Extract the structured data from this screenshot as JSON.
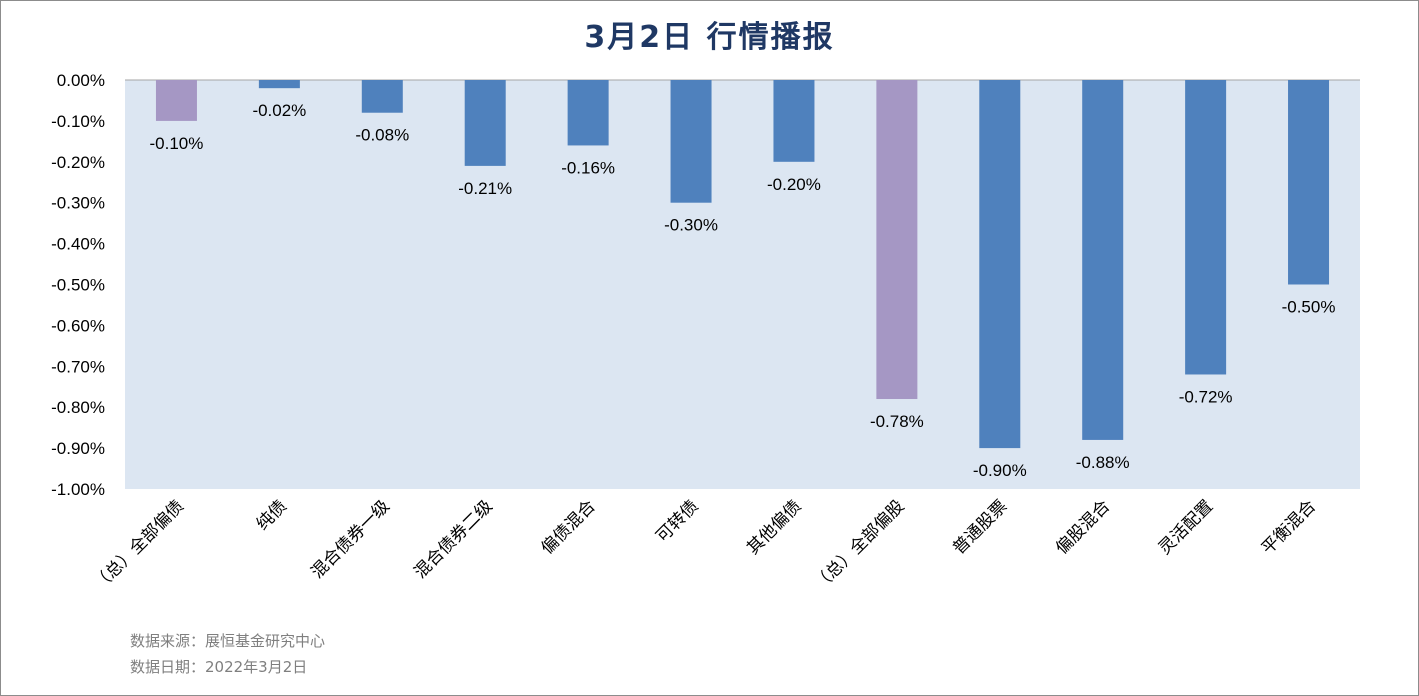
{
  "chart_data": {
    "type": "bar",
    "title": "3月2日  行情播报",
    "categories": [
      "（总）全部偏债",
      "纯债",
      "混合债券一级",
      "混合债券二级",
      "偏债混合",
      "可转债",
      "其他偏债",
      "（总）全部偏股",
      "普通股票",
      "偏股混合",
      "灵活配置",
      "平衡混合"
    ],
    "values": [
      -0.1,
      -0.02,
      -0.08,
      -0.21,
      -0.16,
      -0.3,
      -0.2,
      -0.78,
      -0.9,
      -0.88,
      -0.72,
      -0.5
    ],
    "data_labels": [
      "-0.10%",
      "-0.02%",
      "-0.08%",
      "-0.21%",
      "-0.16%",
      "-0.30%",
      "-0.20%",
      "-0.78%",
      "-0.90%",
      "-0.88%",
      "-0.72%",
      "-0.50%"
    ],
    "highlight": [
      true,
      false,
      false,
      false,
      false,
      false,
      false,
      true,
      false,
      false,
      false,
      false
    ],
    "ylim": [
      -1.0,
      0.0
    ],
    "yticks": [
      0.0,
      -0.1,
      -0.2,
      -0.3,
      -0.4,
      -0.5,
      -0.6,
      -0.7,
      -0.8,
      -0.9,
      -1.0
    ],
    "ytick_labels": [
      "0.00%",
      "-0.10%",
      "-0.20%",
      "-0.30%",
      "-0.40%",
      "-0.50%",
      "-0.60%",
      "-0.70%",
      "-0.80%",
      "-0.90%",
      "-1.00%"
    ],
    "xlabel": "",
    "ylabel": "",
    "grid": false,
    "colors": {
      "bar": "#4f81bd",
      "highlight_bar": "#a597c4",
      "plot_bg": "#dce6f2",
      "title": "#1f3864"
    }
  },
  "footer": {
    "source": "数据来源：展恒基金研究中心",
    "date": "数据日期：2022年3月2日"
  }
}
